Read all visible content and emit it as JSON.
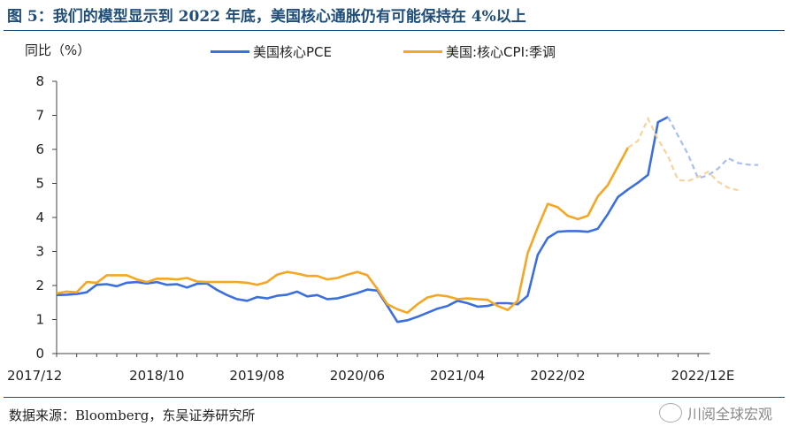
{
  "figure": {
    "title": "图 5：我们的模型显示到 2022 年底，美国核心通胀仍有可能保持在 4%以上",
    "source": "数据来源：Bloomberg，东吴证券研究所",
    "watermark": "川阅全球宏观"
  },
  "chart_data": {
    "type": "line",
    "ylabel": "同比（%）",
    "ylim": [
      0,
      8
    ],
    "yticks": [
      "0",
      "1",
      "2",
      "3",
      "4",
      "5",
      "6",
      "7",
      "8"
    ],
    "xticks": [
      "2017/12",
      "2018/10",
      "2019/08",
      "2020/06",
      "2021/04",
      "2022/02",
      "2022/12E"
    ],
    "x_start": "2017-12",
    "grid": false,
    "legend_position": "top",
    "series": [
      {
        "name": "美国核心PCE",
        "color": "#3c6fde",
        "values": [
          1.72,
          1.73,
          1.75,
          1.8,
          2.02,
          2.04,
          1.98,
          2.08,
          2.1,
          2.06,
          2.1,
          2.02,
          2.04,
          1.94,
          2.05,
          2.06,
          1.87,
          1.72,
          1.6,
          1.55,
          1.66,
          1.62,
          1.7,
          1.73,
          1.82,
          1.68,
          1.72,
          1.6,
          1.62,
          1.7,
          1.78,
          1.88,
          1.85,
          1.4,
          0.93,
          0.98,
          1.08,
          1.2,
          1.32,
          1.4,
          1.55,
          1.48,
          1.38,
          1.4,
          1.48,
          1.48,
          1.45,
          1.7,
          2.9,
          3.4,
          3.58,
          3.6,
          3.6,
          3.58,
          3.67,
          4.1,
          4.6,
          4.82,
          5.02,
          5.25,
          6.8,
          6.95
        ],
        "forecast": [
          6.95,
          6.4,
          5.85,
          5.15,
          5.24,
          5.44,
          5.74,
          5.6,
          5.55,
          5.54
        ],
        "forecast_color": "#a8bff0"
      },
      {
        "name": "美国:核心CPI:季调",
        "color": "#f5a623",
        "values": [
          1.77,
          1.82,
          1.8,
          2.1,
          2.08,
          2.3,
          2.3,
          2.3,
          2.18,
          2.1,
          2.2,
          2.2,
          2.18,
          2.22,
          2.12,
          2.1,
          2.1,
          2.1,
          2.1,
          2.08,
          2.02,
          2.1,
          2.32,
          2.4,
          2.35,
          2.28,
          2.28,
          2.18,
          2.22,
          2.32,
          2.4,
          2.3,
          1.9,
          1.45,
          1.3,
          1.2,
          1.45,
          1.65,
          1.72,
          1.68,
          1.6,
          1.62,
          1.6,
          1.58,
          1.4,
          1.28,
          1.55,
          2.95,
          3.7,
          4.4,
          4.3,
          4.05,
          3.95,
          4.05,
          4.62,
          4.95,
          5.5,
          6.05
        ],
        "forecast": [
          6.05,
          6.25,
          6.9,
          6.3,
          5.8,
          5.1,
          5.07,
          5.19,
          5.34,
          5.05,
          4.87,
          4.8
        ],
        "forecast_color": "#f8d49a"
      }
    ]
  }
}
